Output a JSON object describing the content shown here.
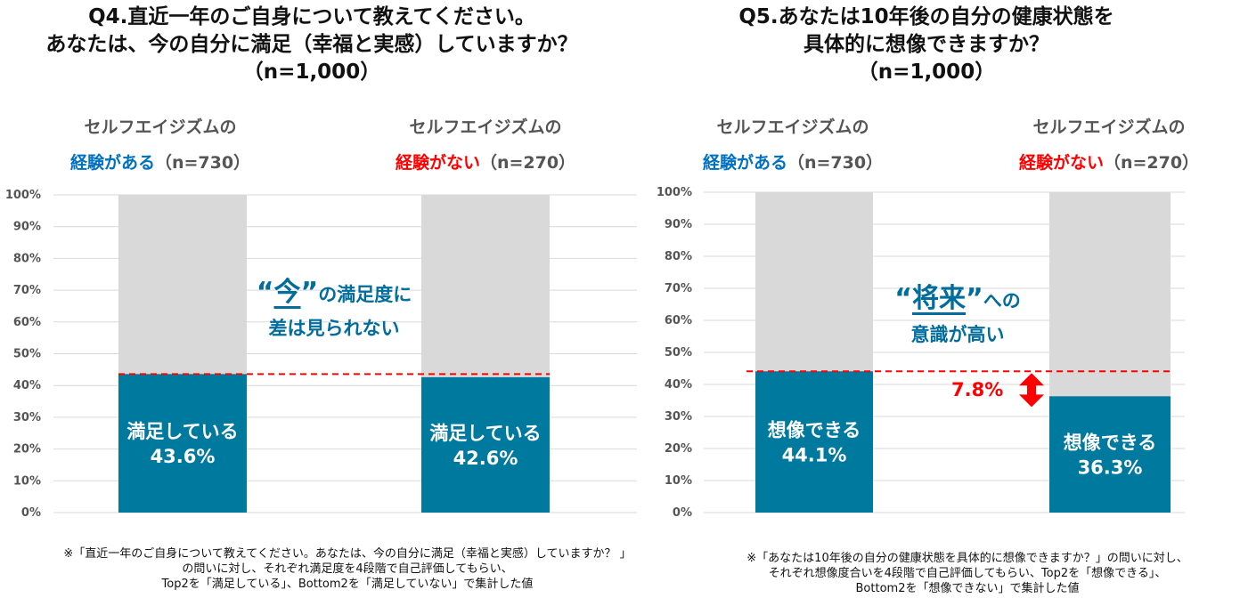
{
  "q4": {
    "title_lines": [
      "Q4.直近一年のご自身について教えてください。",
      "あなたは、今の自分に満足（幸福と実感）していますか？",
      "（n=1,000）"
    ],
    "groups": [
      {
        "line1": "セルフエイジズムの",
        "line2_colored": "経験がある",
        "line2_rest": "（n=730）",
        "color": "blue"
      },
      {
        "line1": "セルフエイジズムの",
        "line2_colored": "経験がない",
        "line2_rest": "（n=270）",
        "color": "red"
      }
    ],
    "callout": {
      "open_quote": "“",
      "big": "今",
      "close_quote": "”",
      "rest": "の満足度に",
      "line2": "差は見られない"
    },
    "note_lines": [
      "※「直近一年のご自身について教えてください。あなたは、今の自分に満足（幸福と実感）していますか？ 」",
      "の問いに対し、それぞれ満足度を4段階で自己評価してもらい、",
      "Top2を「満足している」、Bottom2を「満足していない」で集計した値"
    ]
  },
  "q5": {
    "title_lines": [
      "Q5.あなたは10年後の自分の健康状態を",
      "具体的に想像できますか？",
      "（n=1,000）"
    ],
    "groups": [
      {
        "line1": "セルフエイジズムの",
        "line2_colored": "経験がある",
        "line2_rest": "（n=730）",
        "color": "blue"
      },
      {
        "line1": "セルフエイジズムの",
        "line2_colored": "経験がない",
        "line2_rest": "（n=270）",
        "color": "red"
      }
    ],
    "callout": {
      "open_quote": "“",
      "big": "将来",
      "close_quote": "”",
      "rest": "への",
      "line2": "意識が高い"
    },
    "difference_label": "7.8%",
    "note_lines": [
      "※「あなたは10年後の自分の健康状態を具体的に想像できますか？」の問いに対し、",
      "それぞれ想像度合いを4段階で自己評価してもらい、Top2を「想像できる」、",
      "Bottom2を「想像できない」で集計した値"
    ]
  },
  "colors": {
    "bar_fill": "#00799f",
    "bar_background": "#d9d9d9",
    "reference_line": "#ff0000",
    "accent_blue": "#0070c0",
    "accent_red": "#ff0000",
    "callout": "#006d9c"
  },
  "chart_data": [
    {
      "type": "bar",
      "chart": "Q4",
      "categories": [
        "セルフエイジズムの経験がある（n=730）",
        "セルフエイジズムの経験がない（n=270）"
      ],
      "series": [
        {
          "name": "満足している",
          "values": [
            43.6,
            42.6
          ]
        }
      ],
      "value_labels": [
        "43.6%",
        "42.6%"
      ],
      "ylim": [
        0,
        100
      ],
      "yticks": [
        "0%",
        "10%",
        "20%",
        "30%",
        "40%",
        "50%",
        "60%",
        "70%",
        "80%",
        "90%",
        "100%"
      ],
      "stacked_to_100": true,
      "reference_line_value": 43.6,
      "grid": true
    },
    {
      "type": "bar",
      "chart": "Q5",
      "categories": [
        "セルフエイジズムの経験がある（n=730）",
        "セルフエイジズムの経験がない（n=270）"
      ],
      "series": [
        {
          "name": "想像できる",
          "values": [
            44.1,
            36.3
          ]
        }
      ],
      "value_labels": [
        "44.1%",
        "36.3%"
      ],
      "ylim": [
        0,
        100
      ],
      "yticks": [
        "0%",
        "10%",
        "20%",
        "30%",
        "40%",
        "50%",
        "60%",
        "70%",
        "80%",
        "90%",
        "100%"
      ],
      "stacked_to_100": true,
      "reference_line_value": 44.1,
      "grid": true
    }
  ]
}
